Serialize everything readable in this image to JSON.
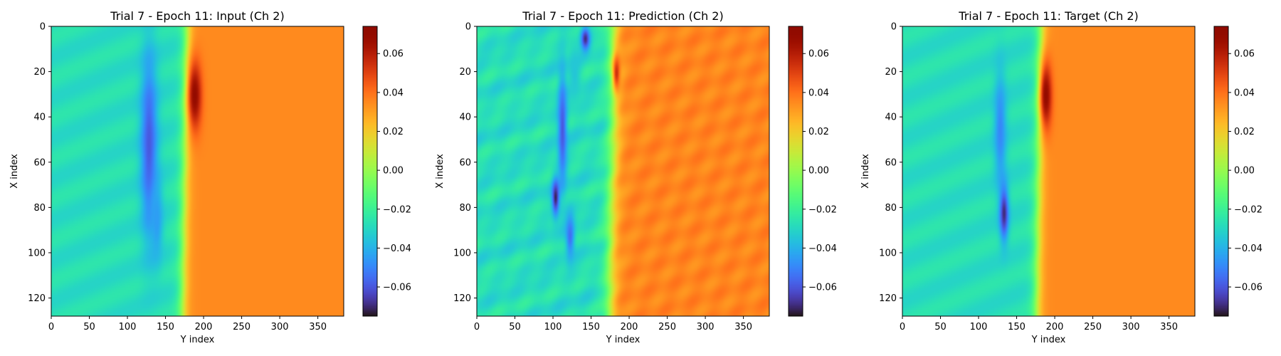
{
  "chart_data": [
    {
      "type": "heatmap",
      "title": "Trial 7 - Epoch 11: Input (Ch 2)",
      "xlabel": "Y index",
      "ylabel": "X index",
      "xlim": [
        0,
        384
      ],
      "ylim": [
        128,
        0
      ],
      "xticks": [
        0,
        50,
        100,
        150,
        200,
        250,
        300,
        350
      ],
      "yticks": [
        0,
        20,
        40,
        60,
        80,
        100,
        120
      ],
      "colormap": "turbo",
      "colorbar_range": [
        -0.075,
        0.074
      ],
      "colorbar_ticks": [
        "0.06",
        "0.04",
        "0.02",
        "0.00",
        "−0.02",
        "−0.04",
        "−0.06"
      ],
      "colorbar_tick_values": [
        0.06,
        0.04,
        0.02,
        0.0,
        -0.02,
        -0.04,
        -0.06
      ],
      "field": {
        "background_left": -0.028,
        "background_right": 0.035,
        "front": [
          [
            0,
            178
          ],
          [
            40,
            176
          ],
          [
            80,
            174
          ],
          [
            128,
            172
          ]
        ],
        "front_width": 8,
        "low_blobs": [
          {
            "x_center": 52,
            "y_center": 128,
            "x_radius": 40,
            "y_radius": 11,
            "value": -0.06
          },
          {
            "x_center": 85,
            "y_center": 138,
            "x_radius": 18,
            "y_radius": 8,
            "value": -0.045
          }
        ],
        "high_blobs": [
          {
            "x_center": 30,
            "y_center": 188,
            "x_radius": 15,
            "y_radius": 9,
            "value": 0.07
          }
        ]
      }
    },
    {
      "type": "heatmap",
      "title": "Trial 7 - Epoch 11: Prediction (Ch 2)",
      "xlabel": "Y index",
      "ylabel": "X index",
      "xlim": [
        0,
        384
      ],
      "ylim": [
        128,
        0
      ],
      "xticks": [
        0,
        50,
        100,
        150,
        200,
        250,
        300,
        350
      ],
      "yticks": [
        0,
        20,
        40,
        60,
        80,
        100,
        120
      ],
      "colormap": "turbo",
      "colorbar_range": [
        -0.075,
        0.074
      ],
      "colorbar_ticks": [
        "0.06",
        "0.04",
        "0.02",
        "0.00",
        "−0.02",
        "−0.04",
        "−0.06"
      ],
      "colorbar_tick_values": [
        0.06,
        0.04,
        0.02,
        0.0,
        -0.02,
        -0.04,
        -0.06
      ],
      "field": {
        "background_left": -0.028,
        "background_right": 0.036,
        "front": [
          [
            0,
            178
          ],
          [
            40,
            180
          ],
          [
            80,
            176
          ],
          [
            128,
            174
          ]
        ],
        "front_width": 10,
        "low_blobs": [
          {
            "x_center": 5,
            "y_center": 142,
            "x_radius": 5,
            "y_radius": 6,
            "value": -0.07
          },
          {
            "x_center": 45,
            "y_center": 112,
            "x_radius": 25,
            "y_radius": 6,
            "value": -0.06
          },
          {
            "x_center": 75,
            "y_center": 103,
            "x_radius": 8,
            "y_radius": 5,
            "value": -0.072
          },
          {
            "x_center": 92,
            "y_center": 122,
            "x_radius": 10,
            "y_radius": 6,
            "value": -0.055
          },
          {
            "x_center": 20,
            "y_center": 128,
            "x_radius": 12,
            "y_radius": 8,
            "value": -0.035
          }
        ],
        "high_blobs": [
          {
            "x_center": 20,
            "y_center": 183,
            "x_radius": 8,
            "y_radius": 5,
            "value": 0.055
          }
        ],
        "texture": 0.004
      }
    },
    {
      "type": "heatmap",
      "title": "Trial 7 - Epoch 11: Target (Ch 2)",
      "xlabel": "Y index",
      "ylabel": "X index",
      "xlim": [
        0,
        384
      ],
      "ylim": [
        128,
        0
      ],
      "xticks": [
        0,
        50,
        100,
        150,
        200,
        250,
        300,
        350
      ],
      "yticks": [
        0,
        20,
        40,
        60,
        80,
        100,
        120
      ],
      "colormap": "turbo",
      "colorbar_range": [
        -0.075,
        0.074
      ],
      "colorbar_ticks": [
        "0.06",
        "0.04",
        "0.02",
        "0.00",
        "−0.02",
        "−0.04",
        "−0.06"
      ],
      "colorbar_tick_values": [
        0.06,
        0.04,
        0.02,
        0.0,
        -0.02,
        -0.04,
        -0.06
      ],
      "field": {
        "background_left": -0.028,
        "background_right": 0.035,
        "front": [
          [
            0,
            182
          ],
          [
            40,
            180
          ],
          [
            80,
            178
          ],
          [
            128,
            176
          ]
        ],
        "front_width": 8,
        "low_blobs": [
          {
            "x_center": 45,
            "y_center": 128,
            "x_radius": 25,
            "y_radius": 8,
            "value": -0.05
          },
          {
            "x_center": 82,
            "y_center": 133,
            "x_radius": 12,
            "y_radius": 6,
            "value": -0.07
          }
        ],
        "high_blobs": [
          {
            "x_center": 30,
            "y_center": 188,
            "x_radius": 15,
            "y_radius": 8,
            "value": 0.07
          }
        ]
      }
    }
  ]
}
